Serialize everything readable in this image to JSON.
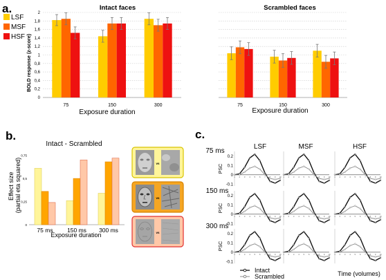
{
  "colors": {
    "lsf": "#FFCC00",
    "msf": "#FF6600",
    "hsf": "#EE1111",
    "b_lsf": "#FFF59A",
    "b_msf": "#FFA500",
    "b_hsf": "#FFC8A8",
    "grid": "#cccccc",
    "bar_err": "#777777"
  },
  "panel_labels": {
    "a": "a.",
    "b": "b.",
    "c": "c."
  },
  "legend_a": [
    "LSF",
    "MSF",
    "HSF"
  ],
  "chart_data": [
    {
      "id": "a-intact",
      "type": "bar",
      "title": "Intact faces",
      "categories": [
        "75",
        "150",
        "300"
      ],
      "series": [
        {
          "name": "LSF",
          "values": [
            1.82,
            1.44,
            1.85
          ],
          "errors": [
            0.13,
            0.14,
            0.14
          ]
        },
        {
          "name": "MSF",
          "values": [
            1.85,
            1.74,
            1.7
          ],
          "errors": [
            0.14,
            0.14,
            0.14
          ]
        },
        {
          "name": "HSF",
          "values": [
            1.52,
            1.74,
            1.74
          ],
          "errors": [
            0.14,
            0.14,
            0.14
          ]
        }
      ],
      "xlabel": "Exposure duration",
      "ylabel": "BOLD response (z-score)",
      "ylim": [
        0,
        2
      ],
      "yticks": [
        "0",
        "0,2",
        "0,4",
        "0,6",
        "0,8",
        "1",
        "1,2",
        "1,4",
        "1,6",
        "1,8",
        "2"
      ],
      "grid": true
    },
    {
      "id": "a-scrambled",
      "type": "bar",
      "title": "Scrambled faces",
      "categories": [
        "75",
        "150",
        "300"
      ],
      "series": [
        {
          "name": "LSF",
          "values": [
            1.04,
            0.96,
            1.1
          ],
          "errors": [
            0.15,
            0.15,
            0.15
          ]
        },
        {
          "name": "MSF",
          "values": [
            1.18,
            0.87,
            0.84
          ],
          "errors": [
            0.15,
            0.16,
            0.15
          ]
        },
        {
          "name": "HSF",
          "values": [
            1.14,
            0.93,
            0.92
          ],
          "errors": [
            0.15,
            0.15,
            0.15
          ]
        }
      ],
      "xlabel": "Exposure duration",
      "ylabel": "",
      "ylim": [
        0,
        2
      ],
      "yticks": [
        "0",
        "0,2",
        "0,4",
        "0,6",
        "0,8",
        "1",
        "1,2",
        "1,4",
        "1,6",
        "1,8",
        "2"
      ],
      "grid": true
    },
    {
      "id": "b",
      "type": "bar",
      "title": "Intact - Scrambled",
      "categories": [
        "75 ms",
        "150 ms",
        "300 ms"
      ],
      "series": [
        {
          "name": "LSF",
          "values": [
            0.61,
            0.26,
            0.34
          ]
        },
        {
          "name": "MSF",
          "values": [
            0.36,
            0.5,
            0.68
          ]
        },
        {
          "name": "HSF",
          "values": [
            0.24,
            0.7,
            0.72
          ]
        }
      ],
      "xlabel": "Exposure duration",
      "ylabel": "Effect size (partial eta squared)",
      "ylim": [
        0,
        0.8
      ],
      "yticks": [
        "0",
        "0,25",
        "0,5",
        "0,75"
      ]
    },
    {
      "id": "c",
      "type": "line",
      "columns": [
        "LSF",
        "MSF",
        "HSF"
      ],
      "rows": [
        "75 ms",
        "150 ms",
        "300 ms"
      ],
      "ylabel": "PSC",
      "yticks": [
        "-0.1",
        "0",
        "0.1",
        "0.2"
      ],
      "ylim": [
        -0.12,
        0.25
      ],
      "xlabel": "Time (volumes)",
      "xticks": [
        "1",
        "2",
        "3",
        "4",
        "5",
        "6",
        "7",
        "8",
        "9",
        "10"
      ],
      "x": [
        1,
        2,
        3,
        4,
        5,
        6,
        7,
        8,
        9,
        10
      ],
      "series": [
        {
          "name": "Intact",
          "values": [
            0.0,
            0.01,
            0.08,
            0.18,
            0.22,
            0.15,
            0.02,
            -0.07,
            -0.09,
            -0.06
          ]
        },
        {
          "name": "Scrambled",
          "values": [
            0.0,
            0.0,
            0.03,
            0.07,
            0.09,
            0.06,
            0.0,
            -0.04,
            -0.05,
            -0.04
          ]
        }
      ]
    }
  ]
}
